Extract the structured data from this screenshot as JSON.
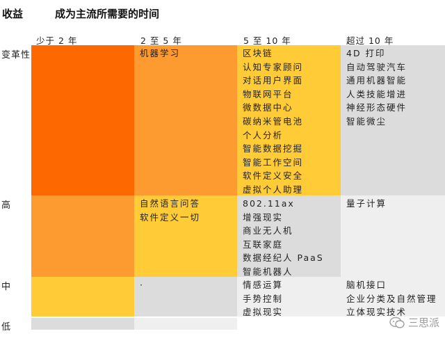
{
  "header": {
    "left_title": "收益",
    "main_title": "成为主流所需要的时间"
  },
  "columns": [
    "少于 2 年",
    "2 至 5 年",
    "5 至 10 年",
    "超过 10 年"
  ],
  "rows": [
    "变革性",
    "高",
    "中",
    "低"
  ],
  "colors": {
    "dark_orange": "#fd6801",
    "orange": "#fd9b30",
    "yellow": "#ffcb36",
    "gray": "#dcdcdc",
    "light_gray": "#efefef"
  },
  "cells": {
    "r0c0": [],
    "r0c1": [
      "机器学习"
    ],
    "r0c2": [
      "区块链",
      "认知专家顾问",
      "对话用户界面",
      "物联网平台",
      "微数据中心",
      "碳纳米管电池",
      "个人分析",
      "智能数据挖掘",
      "智能工作空间",
      "软件定义安全",
      "虚拟个人助理"
    ],
    "r0c3": [
      "4D 打印",
      "自动驾驶汽车",
      "通用机器智能",
      "人类技能增进",
      "神经形态硬件",
      "智能微尘"
    ],
    "r1c0": [],
    "r1c1": [
      "自然语言问答",
      "软件定义一切"
    ],
    "r1c2": [
      "802.11ax",
      "增强现实",
      "商业无人机",
      "互联家庭",
      "数据经纪人 PaaS",
      "智能机器人"
    ],
    "r1c3": [
      "量子计算"
    ],
    "r2c0": [],
    "r2c1": [
      "·"
    ],
    "r2c2": [
      "情感运算",
      "手势控制",
      "虚拟现实"
    ],
    "r2c3": [
      "脑机接口",
      "企业分类及自然管理",
      "立体现实技术"
    ],
    "r3c0": [],
    "r3c1": []
  },
  "watermark": {
    "text": "三思派",
    "icon": "wechat-bubble-icon"
  }
}
